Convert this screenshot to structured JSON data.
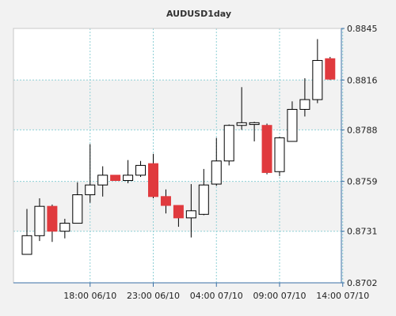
{
  "chart_data": {
    "type": "candlestick",
    "title": "AUDUSD1day",
    "xlabel": "",
    "ylabel": "",
    "ylim": [
      0.8702,
      0.8845
    ],
    "y_ticks": [
      "0.8845",
      "0.8816",
      "0.8788",
      "0.8759",
      "0.8731",
      "0.8702"
    ],
    "x_ticks": [
      {
        "index": 5,
        "label": "18:00 06/10"
      },
      {
        "index": 10,
        "label": "23:00 06/10"
      },
      {
        "index": 15,
        "label": "04:00 07/10"
      },
      {
        "index": 20,
        "label": "09:00 07/10"
      },
      {
        "index": 25,
        "label": "14:00 07/10"
      }
    ],
    "grid": true,
    "legend": "none",
    "colors": {
      "up_body": "#ffffff",
      "down_body": "#e03a3e",
      "outline": "#000000",
      "wick": "#000000",
      "band": "#f2f2f2",
      "grid": "#8fd0d6",
      "axis": "#3a6fa6"
    },
    "candles": [
      {
        "open": 0.8718,
        "high": 0.87435,
        "low": 0.8718,
        "close": 0.87285
      },
      {
        "open": 0.87285,
        "high": 0.87495,
        "low": 0.87255,
        "close": 0.8745
      },
      {
        "open": 0.8745,
        "high": 0.8746,
        "low": 0.8725,
        "close": 0.8731
      },
      {
        "open": 0.8731,
        "high": 0.8738,
        "low": 0.8727,
        "close": 0.87355
      },
      {
        "open": 0.87355,
        "high": 0.87585,
        "low": 0.87355,
        "close": 0.87515
      },
      {
        "open": 0.87515,
        "high": 0.878,
        "low": 0.8747,
        "close": 0.8757
      },
      {
        "open": 0.8757,
        "high": 0.87675,
        "low": 0.87505,
        "close": 0.87625
      },
      {
        "open": 0.87625,
        "high": 0.87625,
        "low": 0.87595,
        "close": 0.87595
      },
      {
        "open": 0.87595,
        "high": 0.8771,
        "low": 0.8758,
        "close": 0.87625
      },
      {
        "open": 0.87625,
        "high": 0.87705,
        "low": 0.87615,
        "close": 0.8768
      },
      {
        "open": 0.8769,
        "high": 0.87745,
        "low": 0.87495,
        "close": 0.87505
      },
      {
        "open": 0.87505,
        "high": 0.87545,
        "low": 0.8741,
        "close": 0.87455
      },
      {
        "open": 0.87455,
        "high": 0.87455,
        "low": 0.87335,
        "close": 0.87385
      },
      {
        "open": 0.87385,
        "high": 0.87575,
        "low": 0.87275,
        "close": 0.87425
      },
      {
        "open": 0.87405,
        "high": 0.8766,
        "low": 0.874,
        "close": 0.8757
      },
      {
        "open": 0.87575,
        "high": 0.87835,
        "low": 0.87565,
        "close": 0.87705
      },
      {
        "open": 0.87705,
        "high": 0.8791,
        "low": 0.8768,
        "close": 0.87905
      },
      {
        "open": 0.87905,
        "high": 0.8812,
        "low": 0.8788,
        "close": 0.8792
      },
      {
        "open": 0.8791,
        "high": 0.87925,
        "low": 0.87815,
        "close": 0.8792
      },
      {
        "open": 0.87905,
        "high": 0.87915,
        "low": 0.8763,
        "close": 0.8764
      },
      {
        "open": 0.87645,
        "high": 0.8784,
        "low": 0.8762,
        "close": 0.87835
      },
      {
        "open": 0.87815,
        "high": 0.8804,
        "low": 0.87815,
        "close": 0.87995
      },
      {
        "open": 0.87995,
        "high": 0.8817,
        "low": 0.87955,
        "close": 0.8805
      },
      {
        "open": 0.8805,
        "high": 0.8839,
        "low": 0.8803,
        "close": 0.8827
      },
      {
        "open": 0.8828,
        "high": 0.8829,
        "low": 0.8816,
        "close": 0.88165
      }
    ]
  }
}
